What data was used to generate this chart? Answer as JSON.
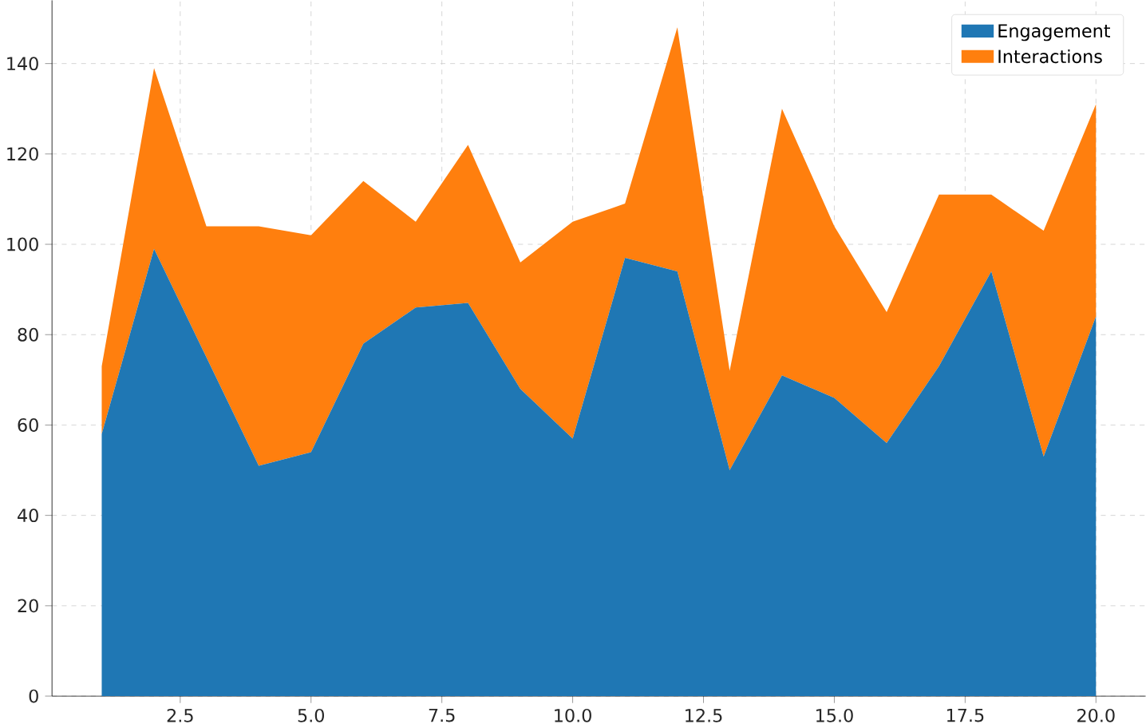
{
  "chart_data": {
    "type": "area",
    "stacked": true,
    "x": [
      1,
      2,
      3,
      4,
      5,
      6,
      7,
      8,
      9,
      10,
      11,
      12,
      13,
      14,
      15,
      16,
      17,
      18,
      19,
      20
    ],
    "series": [
      {
        "name": "Engagement",
        "color": "#1f77b4",
        "values": [
          58,
          99,
          75,
          51,
          54,
          78,
          86,
          87,
          68,
          57,
          97,
          94,
          50,
          71,
          66,
          56,
          73,
          94,
          53,
          84
        ]
      },
      {
        "name": "Interactions",
        "color": "#ff7f0e",
        "values": [
          15,
          40,
          29,
          53,
          48,
          36,
          19,
          35,
          28,
          48,
          12,
          54,
          22,
          59,
          38,
          29,
          38,
          17,
          50,
          47
        ]
      }
    ],
    "xlim": [
      0.05,
      20.95
    ],
    "ylim": [
      0,
      154
    ],
    "xticks": [
      {
        "value": 2.5,
        "label": "2.5"
      },
      {
        "value": 5,
        "label": "5.0"
      },
      {
        "value": 7.5,
        "label": "7.5"
      },
      {
        "value": 10,
        "label": "10.0"
      },
      {
        "value": 12.5,
        "label": "12.5"
      },
      {
        "value": 15,
        "label": "15.0"
      },
      {
        "value": 17.5,
        "label": "17.5"
      },
      {
        "value": 20,
        "label": "20.0"
      }
    ],
    "yticks": [
      0,
      20,
      40,
      60,
      80,
      100,
      120,
      140
    ],
    "grid": true,
    "legend": "top right"
  }
}
